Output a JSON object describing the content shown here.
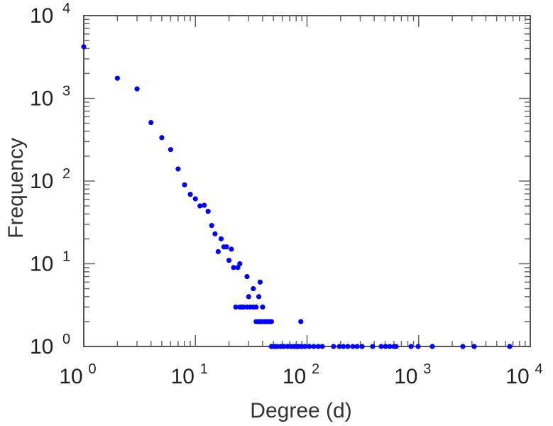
{
  "chart_data": {
    "type": "scatter",
    "title": "",
    "xlabel": "Degree (d)",
    "ylabel": "Frequency",
    "xscale": "log",
    "yscale": "log",
    "xlim": [
      1,
      10000
    ],
    "ylim": [
      1,
      10000
    ],
    "x_ticks": [
      {
        "base": "10",
        "exp": "0"
      },
      {
        "base": "10",
        "exp": "1"
      },
      {
        "base": "10",
        "exp": "2"
      },
      {
        "base": "10",
        "exp": "3"
      },
      {
        "base": "10",
        "exp": "4"
      }
    ],
    "y_ticks": [
      {
        "base": "10",
        "exp": "0"
      },
      {
        "base": "10",
        "exp": "1"
      },
      {
        "base": "10",
        "exp": "2"
      },
      {
        "base": "10",
        "exp": "3"
      },
      {
        "base": "10",
        "exp": "4"
      }
    ],
    "grid": false,
    "marker_color": "#0000ff",
    "points": [
      [
        1,
        4200
      ],
      [
        2,
        1750
      ],
      [
        3,
        1300
      ],
      [
        4,
        510
      ],
      [
        5,
        335
      ],
      [
        6,
        240
      ],
      [
        7,
        140
      ],
      [
        8,
        90
      ],
      [
        9,
        69
      ],
      [
        10,
        61
      ],
      [
        11,
        50
      ],
      [
        12,
        51
      ],
      [
        13,
        43
      ],
      [
        14,
        29
      ],
      [
        15,
        23
      ],
      [
        16,
        14
      ],
      [
        17,
        20
      ],
      [
        18,
        16
      ],
      [
        19,
        16
      ],
      [
        20,
        11
      ],
      [
        21,
        15
      ],
      [
        22,
        9
      ],
      [
        24,
        9
      ],
      [
        25,
        10
      ],
      [
        29,
        7
      ],
      [
        30,
        4
      ],
      [
        33,
        5
      ],
      [
        37,
        4
      ],
      [
        38,
        6
      ],
      [
        23,
        3
      ],
      [
        25,
        3
      ],
      [
        26,
        3
      ],
      [
        27,
        3
      ],
      [
        29,
        3
      ],
      [
        31,
        3
      ],
      [
        33,
        3
      ],
      [
        35,
        3
      ],
      [
        40,
        3
      ],
      [
        35,
        2
      ],
      [
        37,
        2
      ],
      [
        38,
        2
      ],
      [
        40,
        2
      ],
      [
        42,
        2
      ],
      [
        44,
        2
      ],
      [
        46,
        2
      ],
      [
        48,
        2
      ],
      [
        88,
        2
      ],
      [
        48,
        1
      ],
      [
        51,
        1
      ],
      [
        54,
        1
      ],
      [
        58,
        1
      ],
      [
        62,
        1
      ],
      [
        67,
        1
      ],
      [
        72,
        1
      ],
      [
        77,
        1
      ],
      [
        81,
        1
      ],
      [
        85,
        1
      ],
      [
        90,
        1
      ],
      [
        96,
        1
      ],
      [
        105,
        1
      ],
      [
        115,
        1
      ],
      [
        126,
        1
      ],
      [
        137,
        1
      ],
      [
        173,
        1
      ],
      [
        195,
        1
      ],
      [
        212,
        1
      ],
      [
        232,
        1
      ],
      [
        257,
        1
      ],
      [
        281,
        1
      ],
      [
        311,
        1
      ],
      [
        387,
        1
      ],
      [
        462,
        1
      ],
      [
        505,
        1
      ],
      [
        551,
        1
      ],
      [
        601,
        1
      ],
      [
        628,
        1
      ],
      [
        855,
        1
      ],
      [
        989,
        1
      ],
      [
        1325,
        1
      ],
      [
        2488,
        1
      ],
      [
        3148,
        1
      ],
      [
        6546,
        1
      ]
    ]
  }
}
